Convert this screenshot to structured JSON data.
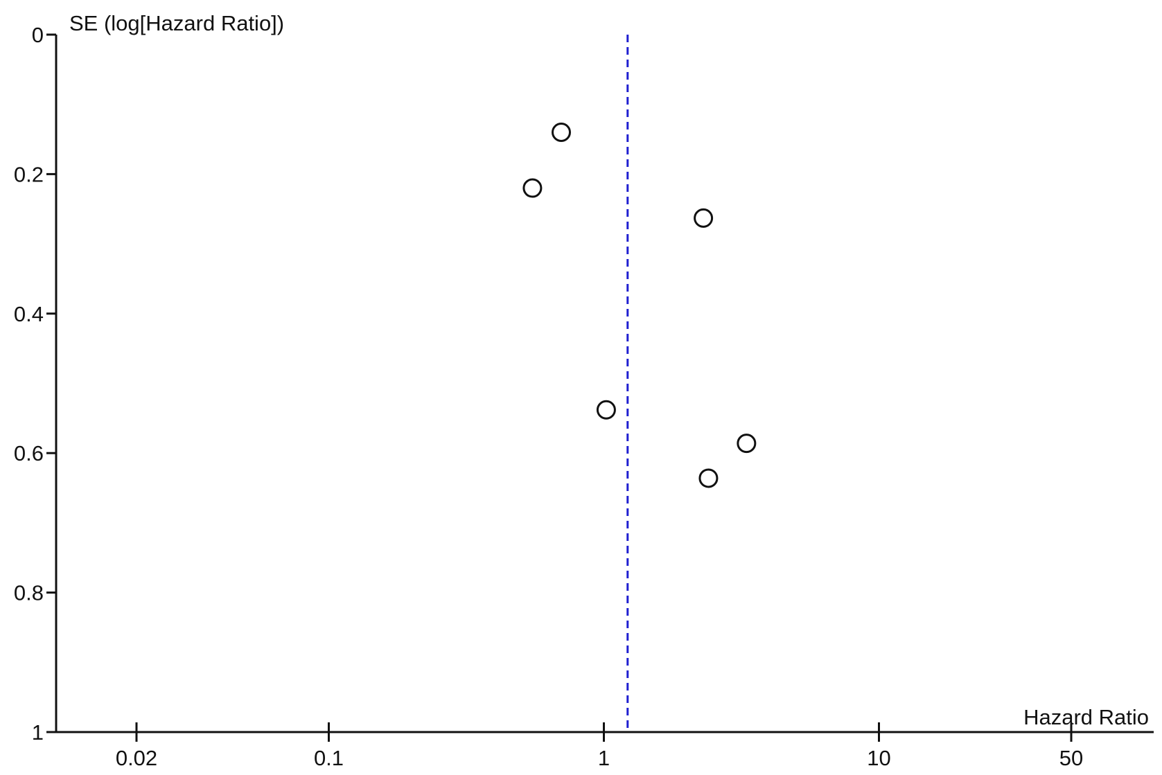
{
  "chart_data": {
    "type": "scatter",
    "subtype": "funnel-plot",
    "xlabel": "Hazard Ratio",
    "ylabel": "SE (log[Hazard Ratio])",
    "x_scale": "log",
    "xlim": [
      0.01,
      80
    ],
    "ylim": [
      0,
      1
    ],
    "y_inverted": true,
    "x_ticks": [
      0.02,
      0.1,
      1,
      10,
      50
    ],
    "x_tick_labels": [
      "0.02",
      "0.1",
      "1",
      "10",
      "50"
    ],
    "y_ticks": [
      0,
      0.2,
      0.4,
      0.6,
      0.8,
      1
    ],
    "y_tick_labels": [
      "0",
      "0.2",
      "0.4",
      "0.6",
      "0.8",
      "1"
    ],
    "reference_line": {
      "x": 1.22,
      "style": "dashed",
      "color": "#1f1fd0"
    },
    "marker": "open-circle",
    "grid": false,
    "legend": "none",
    "points": [
      {
        "x": 0.7,
        "y": 0.14
      },
      {
        "x": 0.55,
        "y": 0.22
      },
      {
        "x": 2.3,
        "y": 0.263
      },
      {
        "x": 1.02,
        "y": 0.538
      },
      {
        "x": 3.3,
        "y": 0.586
      },
      {
        "x": 2.4,
        "y": 0.636
      }
    ]
  }
}
